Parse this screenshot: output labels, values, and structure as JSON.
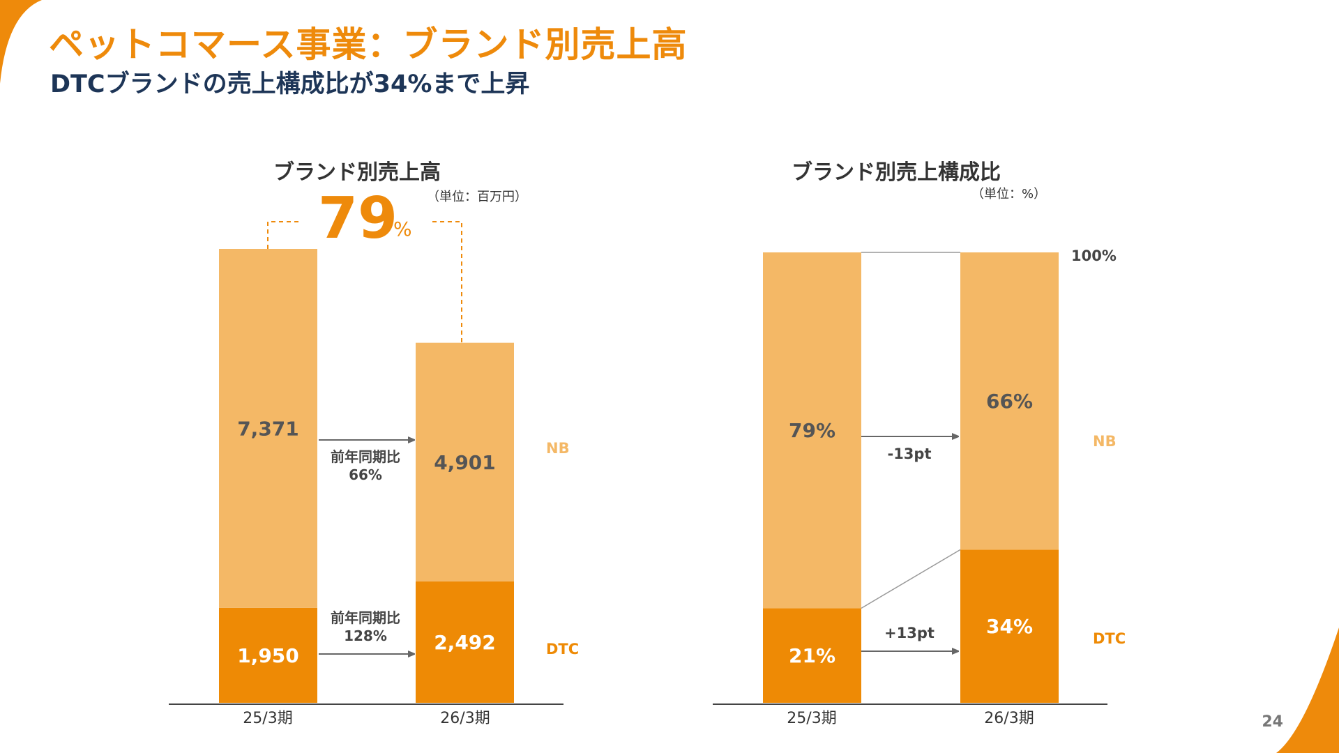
{
  "title": "ペットコマース事業：ブランド別売上高",
  "subtitle": "DTCブランドの売上構成比が34%まで上昇",
  "page_number": "24",
  "colors": {
    "accent": "#EE8A0B",
    "nb": "#F4B866",
    "dtc": "#EE8A05",
    "navy": "#1D3557"
  },
  "left_chart": {
    "unit": "（単位：百万円）",
    "callout_value": "79",
    "callout_unit": "%",
    "growth_nb_label": "前年同期比",
    "growth_nb_value": "66%",
    "growth_dtc_label": "前年同期比",
    "growth_dtc_value": "128%"
  },
  "right_chart": {
    "unit": "（単位：%）",
    "top_label": "100%",
    "nb_change": "-13pt",
    "dtc_change": "+13pt"
  },
  "chart_data": [
    {
      "type": "bar",
      "stacked": true,
      "title": "ブランド別売上高",
      "categories": [
        "25/3期",
        "26/3期"
      ],
      "series": [
        {
          "name": "DTC",
          "values": [
            1950,
            2492
          ],
          "labels": [
            "1,950",
            "2,492"
          ]
        },
        {
          "name": "NB",
          "values": [
            7371,
            4901
          ],
          "labels": [
            "7,371",
            "4,901"
          ]
        }
      ],
      "ylim": [
        0,
        9321
      ]
    },
    {
      "type": "bar",
      "stacked": true,
      "title": "ブランド別売上構成比",
      "categories": [
        "25/3期",
        "26/3期"
      ],
      "series": [
        {
          "name": "DTC",
          "values": [
            21,
            34
          ],
          "labels": [
            "21%",
            "34%"
          ]
        },
        {
          "name": "NB",
          "values": [
            79,
            66
          ],
          "labels": [
            "79%",
            "66%"
          ]
        }
      ],
      "ylim": [
        0,
        100
      ]
    }
  ]
}
